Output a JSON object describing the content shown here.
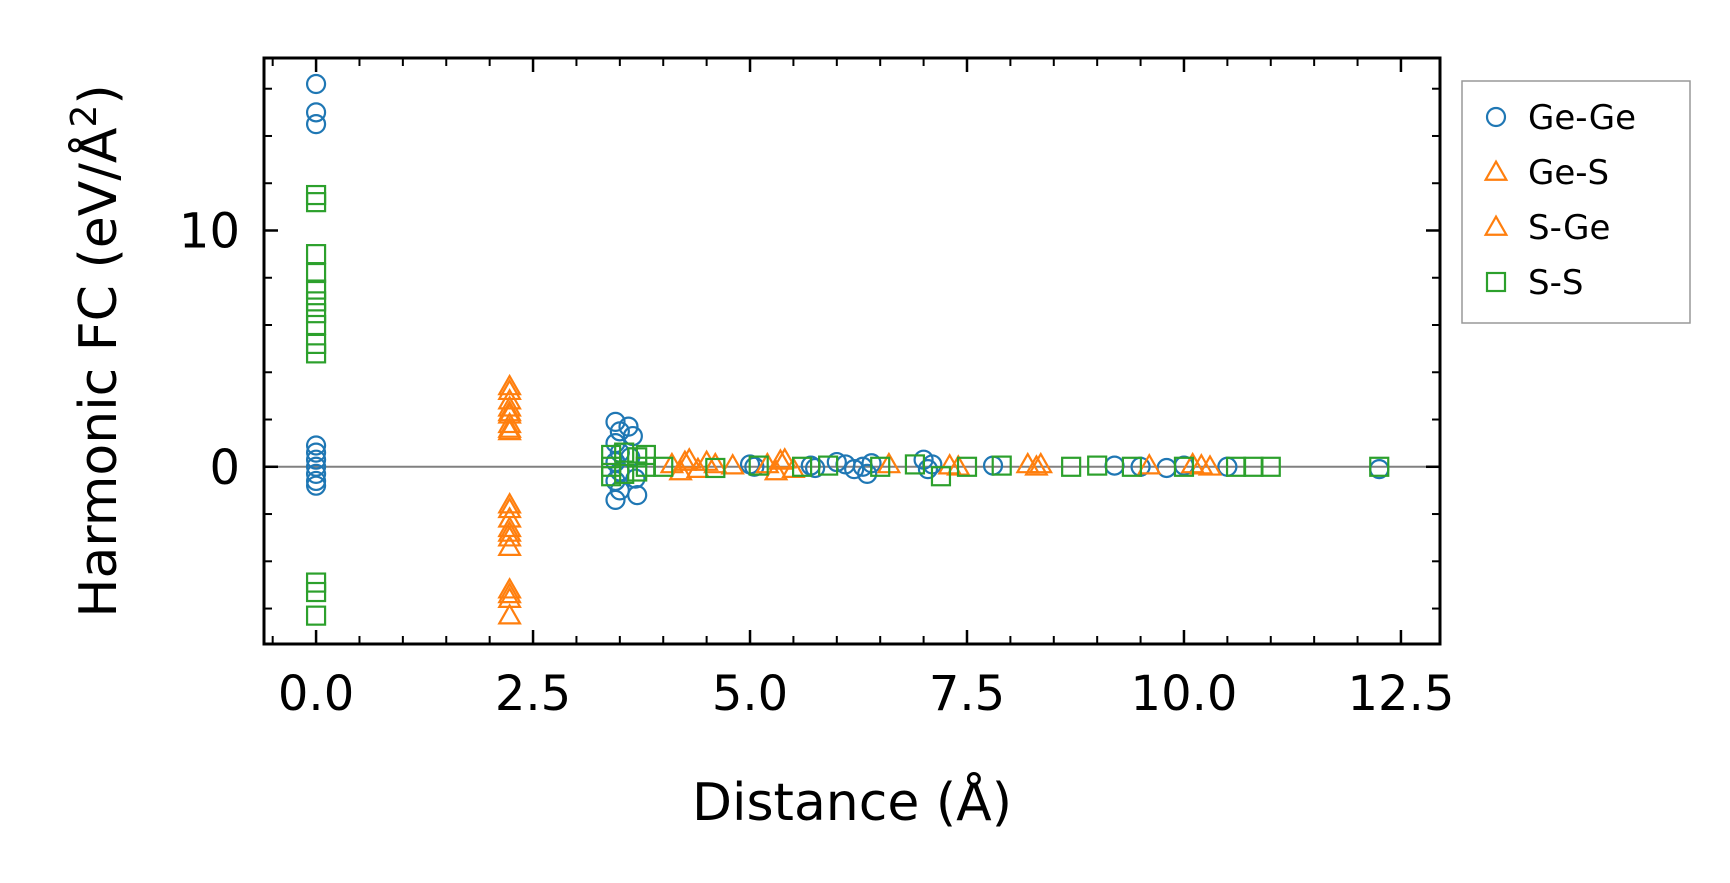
{
  "chart_data": {
    "type": "scatter",
    "title": "",
    "xlabel": "Distance (Å)",
    "ylabel_main": "Harmonic FC (eV/Å",
    "ylabel_sup": "2",
    "ylabel_close": ")",
    "xlim": [
      -0.6,
      12.95
    ],
    "ylim": [
      -7.5,
      17.3
    ],
    "xticks": [
      {
        "value": 0.0,
        "label": "0.0"
      },
      {
        "value": 2.5,
        "label": "2.5"
      },
      {
        "value": 5.0,
        "label": "5.0"
      },
      {
        "value": 7.5,
        "label": "7.5"
      },
      {
        "value": 10.0,
        "label": "10.0"
      },
      {
        "value": 12.5,
        "label": "12.5"
      }
    ],
    "yticks": [
      {
        "value": 0,
        "label": "0"
      },
      {
        "value": 10,
        "label": "10"
      }
    ],
    "x_minor_step": 0.5,
    "y_minor_step": 2,
    "zero_line": true,
    "legend_position": "outside-right-top",
    "colors": {
      "ge_ge": "#1f77b4",
      "ge_s": "#ff7f0e",
      "s_s": "#2ca02c",
      "zero_line": "#808080",
      "axis": "#000000",
      "legend_border": "#999999"
    },
    "series": [
      {
        "name": "Ge-Ge",
        "marker": "circle",
        "color": "#1f77b4",
        "points": [
          [
            0,
            16.2
          ],
          [
            0,
            15.0
          ],
          [
            0,
            14.5
          ],
          [
            0,
            0.9
          ],
          [
            0,
            0.6
          ],
          [
            0,
            0.3
          ],
          [
            0,
            0.0
          ],
          [
            0,
            -0.3
          ],
          [
            0,
            -0.6
          ],
          [
            0,
            -0.8
          ],
          [
            3.45,
            1.9
          ],
          [
            3.5,
            1.5
          ],
          [
            3.45,
            1.0
          ],
          [
            3.5,
            0.6
          ],
          [
            3.45,
            0.2
          ],
          [
            3.5,
            -0.2
          ],
          [
            3.45,
            -0.6
          ],
          [
            3.5,
            -1.0
          ],
          [
            3.45,
            -1.4
          ],
          [
            3.6,
            1.7
          ],
          [
            3.65,
            1.3
          ],
          [
            3.7,
            -1.2
          ],
          [
            3.62,
            0.4
          ],
          [
            3.68,
            -0.5
          ],
          [
            5.0,
            0.1
          ],
          [
            5.05,
            0.0
          ],
          [
            5.7,
            0.05
          ],
          [
            5.75,
            -0.05
          ],
          [
            6.0,
            0.2
          ],
          [
            6.1,
            0.1
          ],
          [
            6.2,
            -0.1
          ],
          [
            6.3,
            0.0
          ],
          [
            6.35,
            -0.3
          ],
          [
            6.4,
            0.15
          ],
          [
            7.0,
            0.3
          ],
          [
            7.05,
            -0.1
          ],
          [
            7.1,
            0.1
          ],
          [
            7.8,
            0.05
          ],
          [
            9.2,
            0.05
          ],
          [
            9.5,
            0.0
          ],
          [
            9.8,
            -0.05
          ],
          [
            10.0,
            0.05
          ],
          [
            10.5,
            0.0
          ],
          [
            12.25,
            -0.1
          ]
        ]
      },
      {
        "name": "Ge-S",
        "marker": "triangle",
        "color": "#ff7f0e",
        "points": [
          [
            2.23,
            3.2
          ],
          [
            2.23,
            2.8
          ],
          [
            2.23,
            2.5
          ],
          [
            2.23,
            2.2
          ],
          [
            2.23,
            1.8
          ],
          [
            2.23,
            1.5
          ],
          [
            2.23,
            -1.8
          ],
          [
            2.23,
            -2.2
          ],
          [
            2.23,
            -2.6
          ],
          [
            2.23,
            -3.0
          ],
          [
            2.23,
            -3.4
          ],
          [
            2.23,
            -5.2
          ],
          [
            2.23,
            -5.6
          ],
          [
            2.23,
            -6.3
          ],
          [
            4.1,
            0.1
          ],
          [
            4.2,
            -0.2
          ],
          [
            4.3,
            0.3
          ],
          [
            4.4,
            -0.1
          ],
          [
            4.5,
            0.2
          ],
          [
            4.8,
            0.05
          ],
          [
            5.2,
            0.1
          ],
          [
            5.3,
            -0.2
          ],
          [
            5.4,
            0.3
          ],
          [
            5.5,
            -0.1
          ],
          [
            6.6,
            0.1
          ],
          [
            7.4,
            0.0
          ],
          [
            8.2,
            0.1
          ],
          [
            8.3,
            0.0
          ],
          [
            9.6,
            0.05
          ],
          [
            10.1,
            0.1
          ],
          [
            10.3,
            0.0
          ]
        ]
      },
      {
        "name": "S-Ge",
        "marker": "triangle",
        "color": "#ff7f0e",
        "points": [
          [
            2.23,
            3.4
          ],
          [
            2.23,
            2.3
          ],
          [
            2.23,
            1.6
          ],
          [
            2.23,
            -1.6
          ],
          [
            2.23,
            -2.8
          ],
          [
            2.23,
            -5.4
          ],
          [
            4.25,
            0.2
          ],
          [
            4.6,
            0.1
          ],
          [
            5.35,
            0.25
          ],
          [
            7.3,
            0.05
          ],
          [
            8.35,
            0.1
          ],
          [
            10.2,
            0.05
          ]
        ]
      },
      {
        "name": "S-S",
        "marker": "square",
        "color": "#2ca02c",
        "points": [
          [
            0,
            11.5
          ],
          [
            0,
            11.2
          ],
          [
            0,
            9.0
          ],
          [
            0,
            8.2
          ],
          [
            0,
            7.5
          ],
          [
            0,
            7.0
          ],
          [
            0,
            6.5
          ],
          [
            0,
            6.0
          ],
          [
            0,
            5.2
          ],
          [
            0,
            4.8
          ],
          [
            0,
            -4.9
          ],
          [
            0,
            -5.3
          ],
          [
            0,
            -6.3
          ],
          [
            3.4,
            0.5
          ],
          [
            3.4,
            0.0
          ],
          [
            3.4,
            -0.4
          ],
          [
            3.55,
            0.6
          ],
          [
            3.55,
            -0.3
          ],
          [
            3.7,
            0.4
          ],
          [
            3.7,
            -0.2
          ],
          [
            3.8,
            0.5
          ],
          [
            3.8,
            0.0
          ],
          [
            4.0,
            0.0
          ],
          [
            4.6,
            -0.05
          ],
          [
            5.1,
            0.05
          ],
          [
            5.6,
            0.0
          ],
          [
            5.9,
            0.05
          ],
          [
            6.5,
            0.0
          ],
          [
            6.9,
            0.1
          ],
          [
            7.2,
            -0.4
          ],
          [
            7.5,
            0.0
          ],
          [
            7.9,
            0.05
          ],
          [
            8.7,
            0.0
          ],
          [
            9.0,
            0.05
          ],
          [
            9.4,
            0.0
          ],
          [
            10.0,
            0.0
          ],
          [
            10.6,
            0.0
          ],
          [
            10.8,
            0.0
          ],
          [
            11.0,
            0.0
          ],
          [
            12.25,
            0.0
          ]
        ]
      }
    ]
  }
}
